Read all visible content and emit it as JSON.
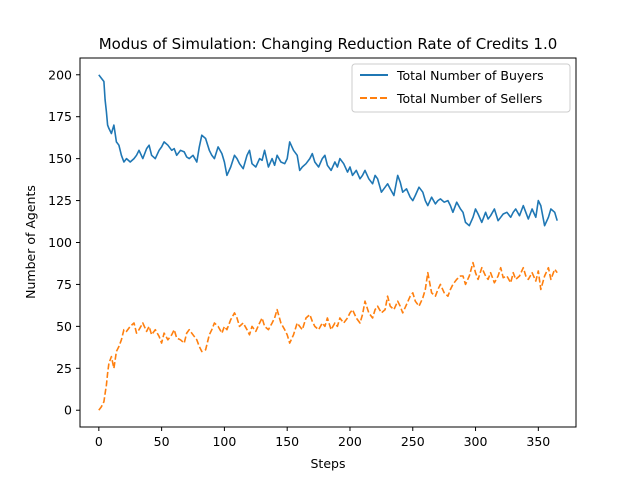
{
  "chart_data": {
    "type": "line",
    "title": "Modus of Simulation: Changing Reduction Rate of Credits 1.0",
    "xlabel": "Steps",
    "ylabel": "Number of Agents",
    "xlim": [
      -15,
      380
    ],
    "ylim": [
      -10,
      210
    ],
    "xticks": [
      0,
      50,
      100,
      150,
      200,
      250,
      300,
      350
    ],
    "yticks": [
      0,
      25,
      50,
      75,
      100,
      125,
      150,
      175,
      200
    ],
    "grid": false,
    "legend_position": "top-right",
    "series": [
      {
        "name": "Total Number of Buyers",
        "color": "#1f77b4",
        "style": "solid",
        "x": [
          0,
          2,
          4,
          5,
          6,
          7,
          8,
          10,
          12,
          14,
          16,
          18,
          20,
          22,
          25,
          28,
          30,
          32,
          35,
          38,
          40,
          42,
          45,
          48,
          50,
          52,
          55,
          58,
          60,
          62,
          65,
          68,
          70,
          72,
          75,
          78,
          80,
          82,
          85,
          88,
          90,
          92,
          95,
          98,
          100,
          102,
          105,
          108,
          110,
          112,
          115,
          118,
          120,
          122,
          125,
          128,
          130,
          132,
          135,
          138,
          140,
          142,
          145,
          148,
          150,
          152,
          155,
          158,
          160,
          162,
          165,
          168,
          170,
          172,
          175,
          178,
          180,
          182,
          185,
          188,
          190,
          192,
          195,
          198,
          200,
          202,
          205,
          208,
          210,
          212,
          215,
          218,
          220,
          222,
          225,
          228,
          230,
          232,
          235,
          238,
          240,
          242,
          245,
          248,
          250,
          252,
          255,
          258,
          260,
          262,
          265,
          268,
          270,
          272,
          275,
          278,
          280,
          282,
          285,
          288,
          290,
          292,
          295,
          298,
          300,
          302,
          305,
          308,
          310,
          312,
          315,
          318,
          320,
          322,
          325,
          328,
          330,
          332,
          335,
          338,
          340,
          342,
          345,
          348,
          350,
          352,
          355,
          358,
          360,
          363,
          365
        ],
        "y": [
          200,
          198,
          196,
          185,
          178,
          170,
          168,
          165,
          170,
          160,
          158,
          152,
          148,
          150,
          148,
          150,
          152,
          155,
          150,
          156,
          158,
          152,
          150,
          155,
          157,
          160,
          158,
          155,
          156,
          152,
          155,
          154,
          151,
          150,
          152,
          148,
          157,
          164,
          162,
          155,
          152,
          150,
          157,
          153,
          148,
          140,
          145,
          152,
          150,
          147,
          144,
          152,
          155,
          147,
          145,
          150,
          149,
          155,
          145,
          150,
          146,
          152,
          148,
          147,
          150,
          160,
          155,
          152,
          143,
          145,
          147,
          150,
          153,
          148,
          145,
          150,
          152,
          146,
          143,
          148,
          145,
          150,
          147,
          142,
          145,
          140,
          143,
          138,
          140,
          143,
          138,
          135,
          140,
          138,
          130,
          133,
          135,
          132,
          128,
          140,
          136,
          130,
          132,
          127,
          125,
          128,
          133,
          130,
          125,
          122,
          127,
          123,
          125,
          126,
          124,
          125,
          122,
          118,
          124,
          120,
          118,
          112,
          110,
          115,
          120,
          117,
          112,
          118,
          114,
          116,
          120,
          113,
          115,
          117,
          118,
          115,
          118,
          120,
          116,
          122,
          118,
          114,
          120,
          115,
          125,
          122,
          110,
          115,
          120,
          118,
          113
        ]
      },
      {
        "name": "Total Number of Sellers",
        "color": "#ff7f0e",
        "style": "dashed",
        "x": [
          0,
          2,
          4,
          5,
          6,
          7,
          8,
          10,
          12,
          14,
          16,
          18,
          20,
          22,
          25,
          28,
          30,
          32,
          35,
          38,
          40,
          42,
          45,
          48,
          50,
          52,
          55,
          58,
          60,
          62,
          65,
          68,
          70,
          72,
          75,
          78,
          80,
          82,
          85,
          88,
          90,
          92,
          95,
          98,
          100,
          102,
          105,
          108,
          110,
          112,
          115,
          118,
          120,
          122,
          125,
          128,
          130,
          132,
          135,
          138,
          140,
          142,
          145,
          148,
          150,
          152,
          155,
          158,
          160,
          162,
          165,
          168,
          170,
          172,
          175,
          178,
          180,
          182,
          185,
          188,
          190,
          192,
          195,
          198,
          200,
          202,
          205,
          208,
          210,
          212,
          215,
          218,
          220,
          222,
          225,
          228,
          230,
          232,
          235,
          238,
          240,
          242,
          245,
          248,
          250,
          252,
          255,
          258,
          260,
          262,
          265,
          268,
          270,
          272,
          275,
          278,
          280,
          282,
          285,
          288,
          290,
          292,
          295,
          298,
          300,
          302,
          305,
          308,
          310,
          312,
          315,
          318,
          320,
          322,
          325,
          328,
          330,
          332,
          335,
          338,
          340,
          342,
          345,
          348,
          350,
          352,
          355,
          358,
          360,
          363,
          365
        ],
        "y": [
          0,
          2,
          5,
          10,
          15,
          22,
          28,
          32,
          25,
          35,
          38,
          42,
          48,
          47,
          50,
          52,
          46,
          48,
          52,
          47,
          50,
          45,
          48,
          44,
          40,
          46,
          42,
          45,
          48,
          43,
          42,
          40,
          46,
          48,
          45,
          42,
          38,
          35,
          36,
          45,
          48,
          52,
          50,
          46,
          50,
          48,
          54,
          58,
          55,
          50,
          52,
          48,
          45,
          50,
          47,
          52,
          55,
          50,
          48,
          52,
          55,
          60,
          52,
          48,
          45,
          40,
          45,
          52,
          50,
          48,
          55,
          57,
          53,
          50,
          48,
          52,
          50,
          55,
          48,
          52,
          50,
          55,
          52,
          55,
          58,
          60,
          55,
          52,
          57,
          65,
          58,
          55,
          60,
          62,
          58,
          60,
          68,
          62,
          60,
          65,
          62,
          58,
          63,
          68,
          70,
          65,
          62,
          67,
          72,
          82,
          70,
          68,
          72,
          75,
          70,
          68,
          72,
          75,
          78,
          80,
          80,
          75,
          80,
          88,
          82,
          78,
          85,
          80,
          78,
          82,
          76,
          80,
          85,
          79,
          80,
          76,
          82,
          78,
          80,
          85,
          80,
          78,
          82,
          77,
          83,
          72,
          80,
          85,
          78,
          84,
          82
        ]
      }
    ]
  }
}
